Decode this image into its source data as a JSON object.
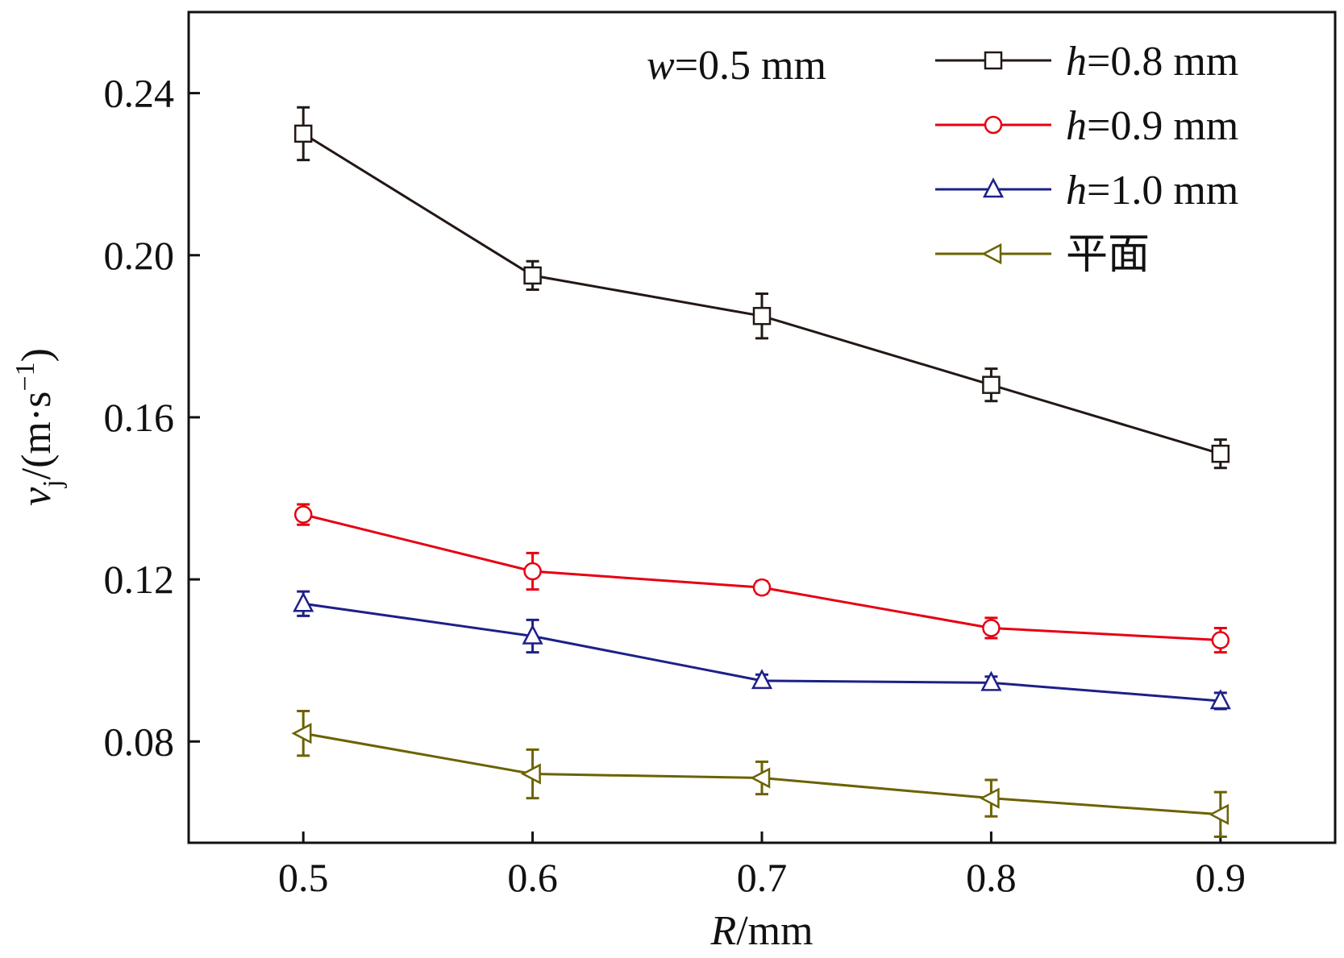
{
  "chart_data": {
    "type": "line",
    "title": "",
    "annotation": {
      "var": "w",
      "rest": "=0.5 mm"
    },
    "xlabel": {
      "var": "R",
      "rest": "/mm"
    },
    "ylabel": {
      "var": "v",
      "sub": "j",
      "unit": "/(m·s",
      "sup": "−1",
      "close": ")"
    },
    "x": [
      0.5,
      0.6,
      0.7,
      0.8,
      0.9
    ],
    "x_tick_labels": [
      "0.5",
      "0.6",
      "0.7",
      "0.8",
      "0.9"
    ],
    "y_ticks": [
      0.08,
      0.12,
      0.16,
      0.2,
      0.24
    ],
    "y_tick_labels": [
      "0.08",
      "0.12",
      "0.16",
      "0.20",
      "0.24"
    ],
    "xlim": [
      0.45,
      0.95
    ],
    "ylim": [
      0.055,
      0.26
    ],
    "grid": false,
    "legend_position": "top-right",
    "series": [
      {
        "name": "h=0.8 mm",
        "label_var": "h",
        "label_rest": "=0.8 mm",
        "color": "#231815",
        "marker": "square",
        "values": [
          0.23,
          0.195,
          0.185,
          0.168,
          0.151
        ],
        "errors": [
          0.0065,
          0.0035,
          0.0055,
          0.004,
          0.0035
        ]
      },
      {
        "name": "h=0.9 mm",
        "label_var": "h",
        "label_rest": "=0.9 mm",
        "color": "#e60012",
        "marker": "circle",
        "values": [
          0.136,
          0.122,
          0.118,
          0.108,
          0.105
        ],
        "errors": [
          0.0025,
          0.0045,
          0.0015,
          0.0025,
          0.003
        ]
      },
      {
        "name": "h=1.0 mm",
        "label_var": "h",
        "label_rest": "=1.0 mm",
        "color": "#1d2088",
        "marker": "triangle-up",
        "values": [
          0.114,
          0.106,
          0.095,
          0.0945,
          0.09
        ],
        "errors": [
          0.003,
          0.004,
          0.0015,
          0.0015,
          0.002
        ]
      },
      {
        "name": "平面",
        "label_var": "",
        "label_rest": "平面",
        "color": "#6b6200",
        "marker": "triangle-left",
        "values": [
          0.082,
          0.072,
          0.071,
          0.066,
          0.062
        ],
        "errors": [
          0.0055,
          0.006,
          0.004,
          0.0045,
          0.0055
        ]
      }
    ]
  }
}
